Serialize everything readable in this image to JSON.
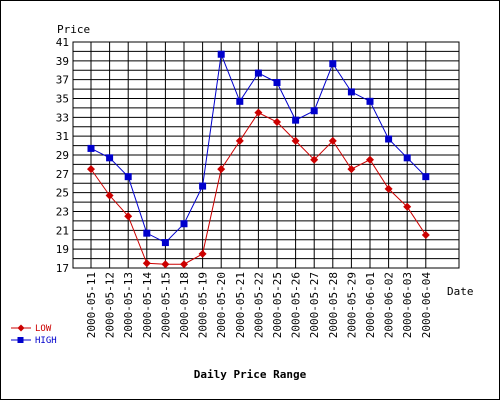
{
  "chart_data": {
    "type": "line",
    "title": "Daily Price Range",
    "xlabel": "Date",
    "ylabel": "Price",
    "categories": [
      "2000-05-11",
      "2000-05-12",
      "2000-05-13",
      "2000-05-14",
      "2000-05-15",
      "2000-05-18",
      "2000-05-19",
      "2000-05-20",
      "2000-05-21",
      "2000-05-22",
      "2000-05-25",
      "2000-05-26",
      "2000-05-27",
      "2000-05-28",
      "2000-05-29",
      "2000-06-01",
      "2000-06-02",
      "2000-06-03",
      "2000-06-04"
    ],
    "ylim": [
      17,
      41
    ],
    "yticks": [
      17,
      19,
      21,
      23,
      25,
      27,
      29,
      31,
      33,
      35,
      37,
      39,
      41
    ],
    "grid": true,
    "legend_position": "bottom-left",
    "series": [
      {
        "name": "LOW",
        "color": "#cc0000",
        "marker": "diamond",
        "values": [
          27.5,
          24.7,
          22.5,
          17.5,
          17.4,
          17.4,
          18.5,
          27.5,
          30.5,
          33.5,
          32.5,
          30.5,
          28.5,
          30.5,
          27.5,
          28.5,
          25.4,
          23.5,
          20.5
        ]
      },
      {
        "name": "HIGH",
        "color": "#0000cc",
        "marker": "square",
        "values": [
          29.7,
          28.7,
          26.7,
          20.7,
          19.7,
          21.7,
          25.7,
          39.7,
          34.7,
          37.7,
          36.7,
          32.7,
          33.7,
          38.7,
          35.7,
          34.7,
          30.7,
          28.7,
          26.7
        ]
      }
    ]
  }
}
